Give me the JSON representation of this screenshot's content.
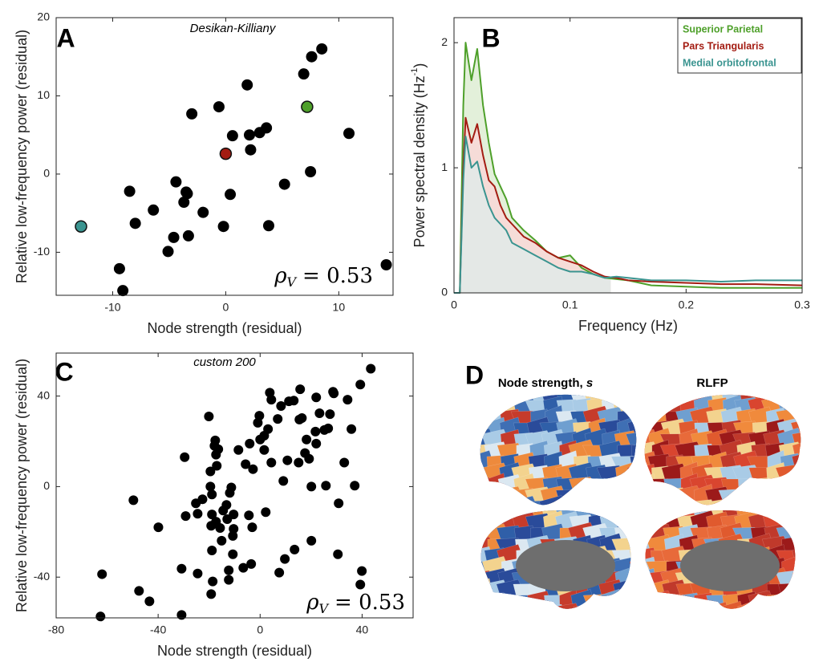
{
  "chart_data": [
    {
      "type": "scatter",
      "panel": "A",
      "annotation": "Desikan-Killiany",
      "stat": {
        "symbol": "ρ",
        "subscript": "V",
        "text": "= 0.53"
      },
      "xlabel": "Node strength (residual)",
      "ylabel": "Relative low-frequency power (residual)",
      "xlim": [
        -15,
        14.8
      ],
      "ylim": [
        -15.5,
        20
      ],
      "xticks": [
        -10,
        0,
        10
      ],
      "yticks": [
        -10,
        0,
        10,
        20
      ],
      "series": [
        {
          "color": "#000000",
          "x": [
            8.5,
            7.6,
            6.9,
            1.9,
            -0.6,
            -3.0,
            3.6,
            3.0,
            2.1,
            0.6,
            2.2,
            10.9,
            7.5,
            -8.5,
            5.2,
            -4.4,
            -3.5,
            -3.4,
            0.4,
            -3.7,
            -6.4,
            -2.0,
            -8.0,
            -0.2,
            3.8,
            -3.3,
            -4.6,
            -5.1,
            -9.4,
            -9.1,
            14.2
          ],
          "values": [
            16.0,
            15.0,
            12.8,
            11.4,
            8.6,
            7.7,
            5.9,
            5.3,
            5.0,
            4.9,
            3.1,
            5.2,
            0.3,
            -2.2,
            -1.3,
            -1.0,
            -2.3,
            -2.5,
            -2.6,
            -3.6,
            -4.6,
            -4.9,
            -6.3,
            -6.7,
            -6.6,
            -7.9,
            -8.1,
            -9.9,
            -12.1,
            -14.9,
            -11.6
          ]
        },
        {
          "color": "#a31c12",
          "x": [
            0.0
          ],
          "values": [
            2.6
          ]
        },
        {
          "color": "#4ea02a",
          "x": [
            7.2
          ],
          "values": [
            8.6
          ]
        },
        {
          "color": "#3a9490",
          "x": [
            -12.8
          ],
          "values": [
            -6.7
          ]
        }
      ]
    },
    {
      "type": "line",
      "panel": "B",
      "xlabel": "Frequency (Hz)",
      "ylabel": "Power spectral density (Hz",
      "ylabel_sup": "-1",
      "ylabel_end": ")",
      "xlim": [
        0,
        0.3
      ],
      "ylim": [
        0,
        2.2
      ],
      "xticks": [
        0,
        0.1,
        0.2,
        0.3
      ],
      "yticks": [
        0,
        1,
        2
      ],
      "shade_until": 0.135,
      "legend": "top-right",
      "x": [
        0,
        0.005,
        0.008,
        0.01,
        0.015,
        0.02,
        0.025,
        0.03,
        0.035,
        0.04,
        0.045,
        0.05,
        0.06,
        0.07,
        0.08,
        0.09,
        0.1,
        0.11,
        0.12,
        0.13,
        0.14,
        0.15,
        0.17,
        0.2,
        0.23,
        0.26,
        0.3
      ],
      "series": [
        {
          "name": "Superior Parietal",
          "color": "#4ea02a",
          "fill_color": "#e3f0da",
          "values": [
            0,
            0,
            1.5,
            2.0,
            1.7,
            1.95,
            1.5,
            1.2,
            0.95,
            0.85,
            0.75,
            0.6,
            0.5,
            0.42,
            0.33,
            0.28,
            0.3,
            0.2,
            0.15,
            0.12,
            0.11,
            0.1,
            0.06,
            0.05,
            0.04,
            0.04,
            0.04
          ]
        },
        {
          "name": "Pars Triangularis",
          "color": "#a31c12",
          "fill_color": "#f6dcd8",
          "values": [
            0,
            0,
            1.0,
            1.4,
            1.2,
            1.35,
            1.1,
            0.9,
            0.85,
            0.7,
            0.6,
            0.55,
            0.45,
            0.4,
            0.33,
            0.28,
            0.25,
            0.22,
            0.17,
            0.13,
            0.12,
            0.1,
            0.09,
            0.08,
            0.07,
            0.07,
            0.06
          ]
        },
        {
          "name": "Medial orbitofrontal",
          "color": "#3a9490",
          "fill_color": "#e4e8e6",
          "values": [
            0,
            0,
            0.9,
            1.25,
            1.0,
            1.05,
            0.85,
            0.7,
            0.6,
            0.55,
            0.5,
            0.4,
            0.35,
            0.3,
            0.25,
            0.2,
            0.17,
            0.17,
            0.15,
            0.12,
            0.13,
            0.12,
            0.1,
            0.1,
            0.09,
            0.1,
            0.1
          ]
        }
      ]
    },
    {
      "type": "scatter",
      "panel": "C",
      "annotation": "custom 200",
      "stat": {
        "symbol": "ρ",
        "subscript": "V",
        "text": "= 0.53"
      },
      "xlabel": "Node strength (residual)",
      "ylabel": "Relative low-frequency power (residual)",
      "xlim": [
        -80,
        60
      ],
      "ylim": [
        -58,
        59
      ],
      "xticks": [
        -80,
        -40,
        0,
        40
      ],
      "yticks": [
        -40,
        0,
        40
      ],
      "series": [
        {
          "color": "#000000",
          "x": [
            43.4,
            39.3,
            34.3,
            28.6,
            28.9,
            22.0,
            15.7,
            13.2,
            6.9,
            3.8,
            4.4,
            -0.3,
            -0.9,
            3.1,
            1.6,
            0,
            8.2,
            11.3,
            15.4,
            16.4,
            23.3,
            27.4,
            35.8,
            25.2,
            26.7,
            21.7,
            18.2,
            22.0,
            17.6,
            15.1,
            19.2,
            10.7,
            33.0,
            -2.8,
            -5.7,
            -4.1,
            -8.5,
            1.6,
            4.4,
            9.1,
            20.1,
            25.8,
            37.1,
            30.8,
            2.2,
            -3.1,
            -4.4,
            -11.9,
            -11.3,
            -13.2,
            -14.5,
            -12.9,
            -10.4,
            -10.4,
            -16.4,
            -17.6,
            -17.9,
            -17.0,
            -19.5,
            -20.1,
            -17.3,
            -19.5,
            -18.9,
            -25.2,
            -24.5,
            -22.6,
            -18.9,
            -17.3,
            -19.2,
            -15.7,
            -29.6,
            -29.2,
            -39.9,
            -49.7,
            -10.7,
            -18.9,
            -15.1,
            -10.7,
            -12.3,
            -18.6,
            -19.2,
            -12.3,
            -6.6,
            -3.5,
            7.5,
            9.7,
            13.5,
            20.1,
            30.5,
            39.3,
            39.9,
            -24.5,
            -30.8,
            -47.5,
            -43.4,
            -30.8,
            -62.0,
            -62.6
          ],
          "values": [
            52.1,
            45.1,
            38.4,
            41.9,
            41.2,
            39.4,
            43.0,
            38.0,
            29.9,
            41.5,
            38.4,
            31.3,
            28.2,
            25.4,
            22.5,
            20.8,
            35.6,
            37.7,
            29.6,
            30.3,
            32.4,
            32.0,
            25.4,
            25.0,
            25.7,
            24.3,
            20.8,
            19.0,
            14.8,
            10.6,
            12.3,
            11.6,
            10.6,
            7.7,
            9.9,
            19.0,
            16.2,
            16.2,
            10.6,
            2.5,
            0,
            0.4,
            0.4,
            -7.4,
            -11.3,
            -18.0,
            -12.7,
            -2.8,
            -0.4,
            -8.1,
            -10.6,
            -14.4,
            -12.3,
            -18.7,
            16.5,
            20.4,
            18.0,
            9.2,
            6.7,
            31.0,
            14.1,
            0,
            -3.5,
            -7.4,
            -12.0,
            -5.6,
            -12.3,
            -15.5,
            -17.3,
            -18.3,
            13.0,
            -13.0,
            -18.0,
            -6.0,
            -21.8,
            -28.2,
            -23.9,
            -29.9,
            -37.0,
            -41.9,
            -47.5,
            -41.2,
            -35.9,
            -34.2,
            -38.0,
            -32.0,
            -27.8,
            -23.9,
            -29.9,
            -43.3,
            -37.3,
            -38.4,
            -36.3,
            -46.1,
            -50.7,
            -56.7,
            -38.7,
            -57.4
          ]
        }
      ]
    }
  ],
  "panel_d": {
    "label": "D",
    "title_left": "Node strength, ",
    "title_left_var": "s",
    "title_right": "RLFP"
  }
}
